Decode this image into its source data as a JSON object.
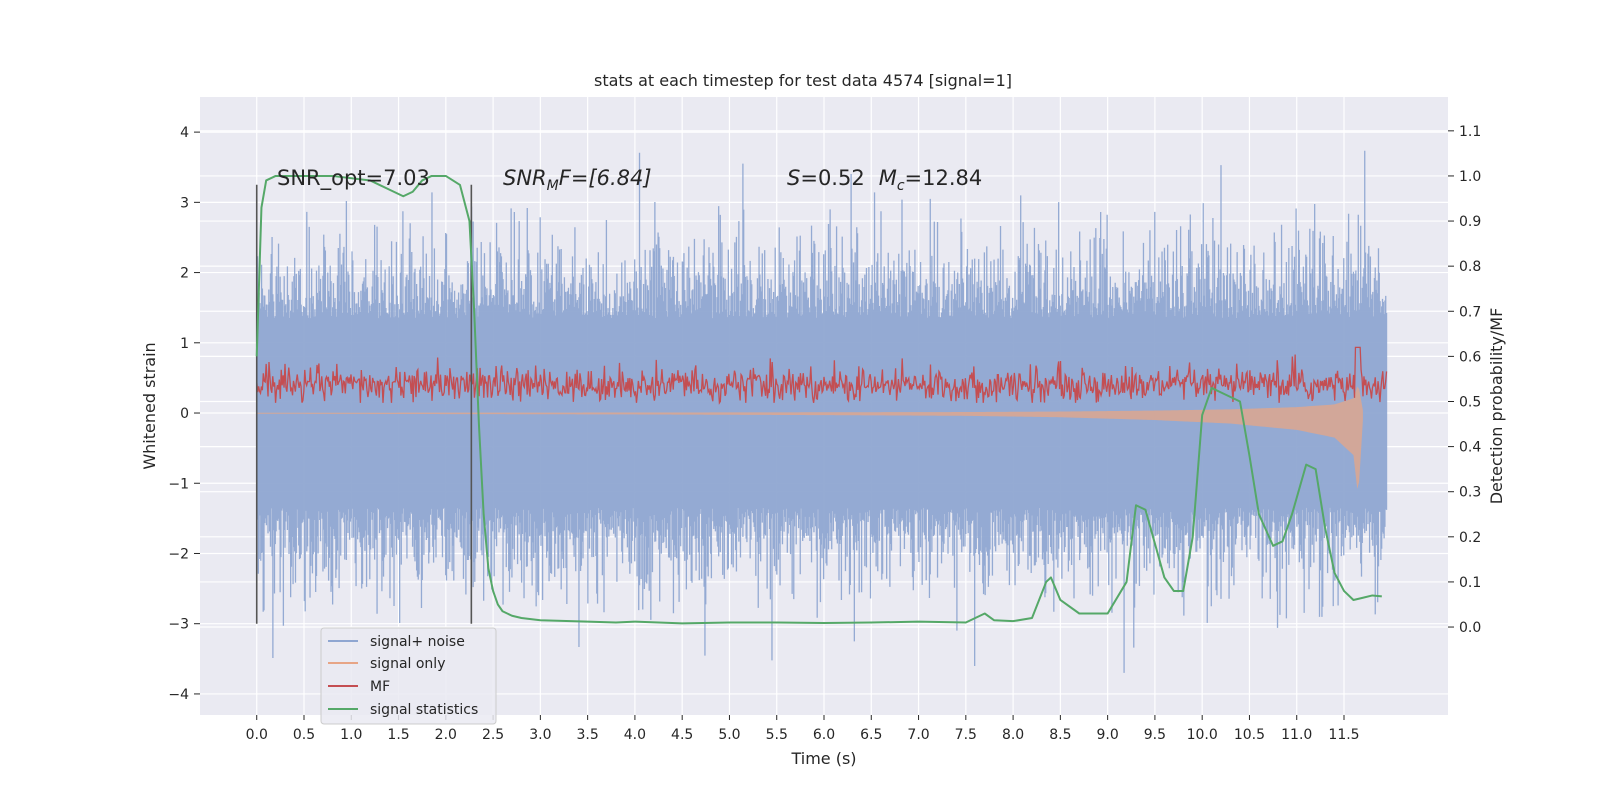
{
  "chart_data": {
    "type": "line",
    "title": "stats at each timestep for test data 4574 [signal=1]",
    "xlabel": "Time (s)",
    "ylabel": "Whitened strain",
    "y2label": "Detection probability/MF",
    "xlim": [
      -0.6,
      12.6
    ],
    "ylim": [
      -4.3,
      4.5
    ],
    "y2lim": [
      -0.195,
      1.175
    ],
    "xticks": [
      "0.0",
      "0.5",
      "1.0",
      "1.5",
      "2.0",
      "2.5",
      "3.0",
      "3.5",
      "4.0",
      "4.5",
      "5.0",
      "5.5",
      "6.0",
      "6.5",
      "7.0",
      "7.5",
      "8.0",
      "8.5",
      "9.0",
      "9.5",
      "10.0",
      "10.5",
      "11.0",
      "11.5"
    ],
    "yticks": [
      "4",
      "3",
      "2",
      "1",
      "0",
      "−1",
      "−2",
      "−3",
      "−4"
    ],
    "y2ticks": [
      "1.1",
      "1.0",
      "0.9",
      "0.8",
      "0.7",
      "0.6",
      "0.5",
      "0.4",
      "0.3",
      "0.2",
      "0.1",
      "0.0"
    ],
    "grid": true,
    "legend_position": "lower-left",
    "annotations": {
      "snr_opt": "SNR_opt=7.03",
      "snr_mf_sym": "SNR",
      "snr_mf_sub": "M",
      "snr_mf_rest": "F=[6.84]",
      "s_sym": "S",
      "s_val": "=0.52",
      "mc_sym": "M",
      "mc_sub": "c",
      "mc_val": "=12.84"
    },
    "vertical_markers": [
      {
        "x": 0.0,
        "ymin": -3.0,
        "ymax": 3.25
      },
      {
        "x": 2.27,
        "ymin": -3.0,
        "ymax": 3.25
      }
    ],
    "series": [
      {
        "name": "signal+ noise",
        "color": "#8fa6d1",
        "axis": "left",
        "description_values": {
          "x_start": 0.0,
          "x_end": 11.95,
          "typical_range": [
            -2.0,
            2.0
          ],
          "extremes": [
            -3.7,
            4.1
          ]
        }
      },
      {
        "name": "signal only",
        "color": "#e7a586",
        "axis": "left",
        "envelope": {
          "x": [
            0.0,
            2.0,
            4.0,
            6.0,
            7.5,
            8.5,
            9.5,
            10.3,
            11.0,
            11.4,
            11.6,
            11.65,
            11.7
          ],
          "amplitude": [
            0.01,
            0.015,
            0.02,
            0.03,
            0.04,
            0.06,
            0.1,
            0.15,
            0.24,
            0.35,
            0.6,
            1.2,
            0.1
          ]
        }
      },
      {
        "name": "MF",
        "color": "#c44e52",
        "axis": "right",
        "description_values": {
          "x_start": 0.0,
          "x_end": 11.95,
          "typical_range": [
            0.5,
            0.57
          ],
          "peak": {
            "x": 11.65,
            "y": 0.62
          }
        }
      },
      {
        "name": "signal statistics",
        "color": "#55a868",
        "axis": "right",
        "x": [
          0.0,
          0.05,
          0.1,
          0.2,
          0.4,
          0.8,
          1.2,
          1.4,
          1.55,
          1.65,
          1.75,
          1.85,
          2.0,
          2.15,
          2.25,
          2.3,
          2.35,
          2.4,
          2.45,
          2.5,
          2.55,
          2.6,
          2.7,
          2.8,
          3.0,
          3.5,
          3.8,
          4.0,
          4.5,
          5.0,
          5.5,
          6.0,
          6.5,
          7.0,
          7.5,
          7.7,
          7.8,
          8.0,
          8.2,
          8.35,
          8.4,
          8.5,
          8.7,
          9.0,
          9.2,
          9.3,
          9.4,
          9.6,
          9.7,
          9.8,
          9.9,
          10.0,
          10.1,
          10.2,
          10.3,
          10.4,
          10.5,
          10.6,
          10.75,
          10.85,
          10.95,
          11.1,
          11.2,
          11.3,
          11.4,
          11.5,
          11.6,
          11.7,
          11.8,
          11.9
        ],
        "y": [
          0.6,
          0.93,
          0.99,
          1.0,
          1.0,
          1.0,
          0.99,
          0.97,
          0.955,
          0.965,
          0.99,
          1.0,
          1.0,
          0.98,
          0.9,
          0.7,
          0.45,
          0.25,
          0.13,
          0.08,
          0.05,
          0.035,
          0.025,
          0.02,
          0.015,
          0.012,
          0.01,
          0.012,
          0.008,
          0.01,
          0.01,
          0.009,
          0.01,
          0.012,
          0.01,
          0.03,
          0.015,
          0.013,
          0.02,
          0.1,
          0.11,
          0.06,
          0.03,
          0.03,
          0.1,
          0.27,
          0.26,
          0.11,
          0.08,
          0.08,
          0.2,
          0.47,
          0.53,
          0.52,
          0.51,
          0.5,
          0.38,
          0.25,
          0.18,
          0.19,
          0.25,
          0.36,
          0.35,
          0.22,
          0.12,
          0.08,
          0.06,
          0.065,
          0.07,
          0.068
        ]
      }
    ]
  }
}
